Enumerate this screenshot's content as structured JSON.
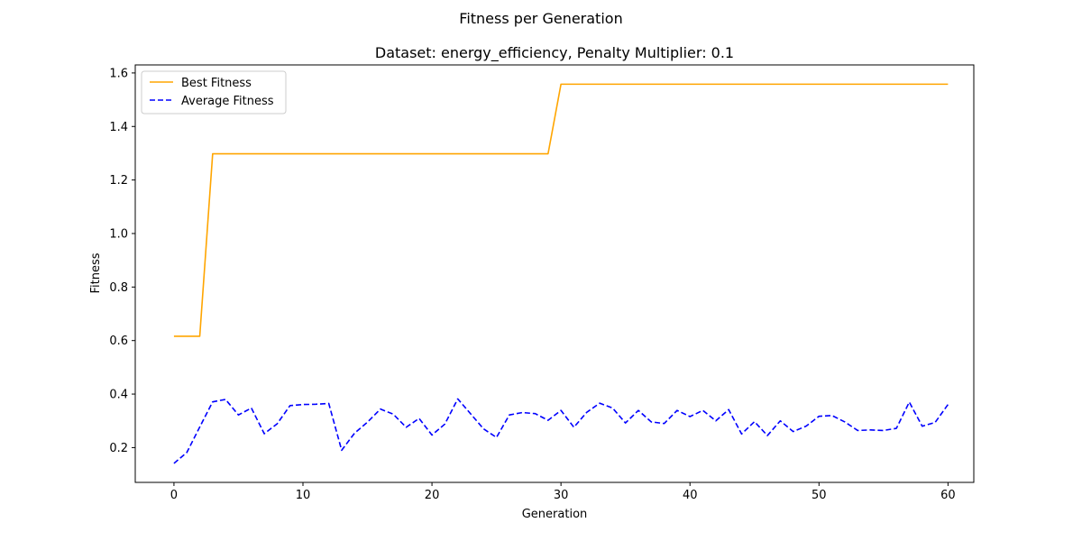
{
  "figure": {
    "suptitle": "Fitness per Generation"
  },
  "chart_data": {
    "type": "line",
    "title": "Dataset: energy_efficiency, Penalty Multiplier: 0.1",
    "xlabel": "Generation",
    "ylabel": "Fitness",
    "xlim": [
      -3,
      62
    ],
    "ylim": [
      0.07,
      1.63
    ],
    "xticks": [
      0,
      10,
      20,
      30,
      40,
      50,
      60
    ],
    "yticks": [
      0.2,
      0.4,
      0.6,
      0.8,
      1.0,
      1.2,
      1.4,
      1.6
    ],
    "xtick_labels": [
      "0",
      "10",
      "20",
      "30",
      "40",
      "50",
      "60"
    ],
    "ytick_labels": [
      "0.2",
      "0.4",
      "0.6",
      "0.8",
      "1.0",
      "1.2",
      "1.4",
      "1.6"
    ],
    "grid": false,
    "legend_position": "upper-left",
    "x": [
      0,
      1,
      2,
      3,
      4,
      5,
      6,
      7,
      8,
      9,
      10,
      11,
      12,
      13,
      14,
      15,
      16,
      17,
      18,
      19,
      20,
      21,
      22,
      23,
      24,
      25,
      26,
      27,
      28,
      29,
      30,
      31,
      32,
      33,
      34,
      35,
      36,
      37,
      38,
      39,
      40,
      41,
      42,
      43,
      44,
      45,
      46,
      47,
      48,
      49,
      50,
      51,
      52,
      53,
      54,
      55,
      56,
      57,
      58,
      59,
      60
    ],
    "series": [
      {
        "name": "Best Fitness",
        "color": "#ffa500",
        "style": "solid",
        "values": [
          0.616,
          0.616,
          0.616,
          1.298,
          1.298,
          1.298,
          1.298,
          1.298,
          1.298,
          1.298,
          1.298,
          1.298,
          1.298,
          1.298,
          1.298,
          1.298,
          1.298,
          1.298,
          1.298,
          1.298,
          1.298,
          1.298,
          1.298,
          1.298,
          1.298,
          1.298,
          1.298,
          1.298,
          1.298,
          1.298,
          1.558,
          1.558,
          1.558,
          1.558,
          1.558,
          1.558,
          1.558,
          1.558,
          1.558,
          1.558,
          1.558,
          1.558,
          1.558,
          1.558,
          1.558,
          1.558,
          1.558,
          1.558,
          1.558,
          1.558,
          1.558,
          1.558,
          1.558,
          1.558,
          1.558,
          1.558,
          1.558,
          1.558,
          1.558,
          1.558,
          1.558
        ]
      },
      {
        "name": "Average Fitness",
        "color": "#0000ff",
        "style": "dashed",
        "values": [
          0.141,
          0.182,
          0.277,
          0.371,
          0.38,
          0.322,
          0.348,
          0.252,
          0.289,
          0.357,
          0.361,
          0.362,
          0.365,
          0.19,
          0.254,
          0.295,
          0.344,
          0.325,
          0.276,
          0.309,
          0.247,
          0.288,
          0.382,
          0.326,
          0.27,
          0.238,
          0.322,
          0.331,
          0.327,
          0.302,
          0.339,
          0.276,
          0.332,
          0.366,
          0.348,
          0.292,
          0.339,
          0.296,
          0.29,
          0.339,
          0.316,
          0.339,
          0.3,
          0.342,
          0.251,
          0.297,
          0.245,
          0.3,
          0.26,
          0.28,
          0.317,
          0.32,
          0.296,
          0.264,
          0.266,
          0.264,
          0.272,
          0.37,
          0.28,
          0.294,
          0.361
        ]
      }
    ]
  }
}
